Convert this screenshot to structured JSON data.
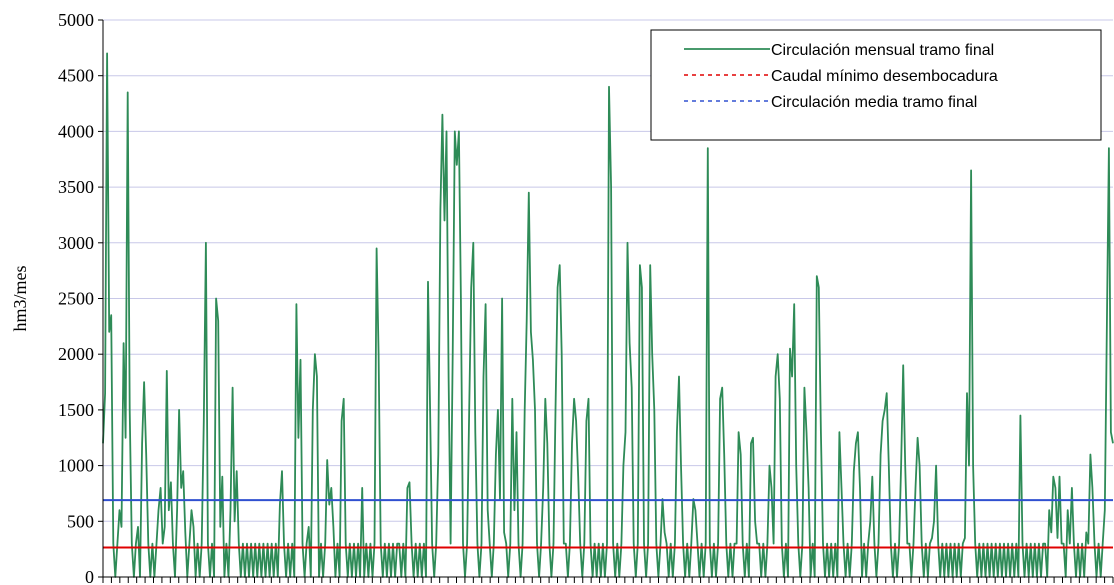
{
  "chart_data": {
    "type": "line",
    "ylabel": "hm3/mes",
    "xlabel": "",
    "ylim": [
      0,
      5000
    ],
    "yticks": [
      0,
      500,
      1000,
      1500,
      2000,
      2500,
      3000,
      3500,
      4000,
      4500,
      5000
    ],
    "grid": true,
    "legend_position": "top-right",
    "colors": {
      "mensual": "#2e8b57",
      "minimo": "#e00000",
      "media": "#3050d0",
      "grid": "#c8c8e8"
    },
    "series": [
      {
        "name": "Circulación mensual tramo final",
        "style": "solid",
        "values": [
          1200,
          1650,
          4700,
          2200,
          2350,
          300,
          0,
          300,
          600,
          450,
          2100,
          1250,
          4350,
          1500,
          300,
          0,
          300,
          450,
          0,
          1200,
          1750,
          1100,
          300,
          0,
          300,
          0,
          300,
          600,
          800,
          300,
          450,
          1850,
          600,
          850,
          300,
          0,
          600,
          1500,
          800,
          950,
          400,
          0,
          300,
          600,
          450,
          0,
          300,
          0,
          300,
          1400,
          3000,
          300,
          0,
          300,
          0,
          2500,
          2300,
          450,
          900,
          0,
          300,
          0,
          600,
          1700,
          500,
          950,
          300,
          0,
          300,
          0,
          300,
          0,
          300,
          0,
          300,
          0,
          300,
          0,
          300,
          0,
          300,
          0,
          300,
          0,
          300,
          0,
          650,
          950,
          300,
          0,
          300,
          0,
          300,
          0,
          2450,
          1250,
          1950,
          300,
          0,
          300,
          450,
          0,
          1500,
          2000,
          1800,
          0,
          300,
          0,
          300,
          1050,
          650,
          800,
          450,
          0,
          300,
          0,
          1400,
          1600,
          300,
          0,
          300,
          0,
          300,
          0,
          300,
          0,
          800,
          0,
          300,
          0,
          300,
          0,
          300,
          2950,
          2000,
          300,
          0,
          300,
          0,
          300,
          0,
          300,
          0,
          300,
          300,
          0,
          300,
          0,
          800,
          850,
          300,
          0,
          300,
          0,
          300,
          0,
          300,
          0,
          2650,
          1500,
          300,
          0,
          300,
          1100,
          3300,
          4150,
          3200,
          4000,
          1800,
          300,
          2000,
          4000,
          3700,
          4000,
          2500,
          300,
          0,
          300,
          1500,
          2600,
          3000,
          1300,
          300,
          0,
          300,
          1800,
          2450,
          600,
          300,
          0,
          300,
          1100,
          1500,
          700,
          2500,
          400,
          300,
          0,
          300,
          1600,
          600,
          1300,
          300,
          0,
          300,
          1500,
          2300,
          3450,
          2200,
          1950,
          1500,
          300,
          0,
          300,
          800,
          1600,
          1200,
          300,
          0,
          300,
          1500,
          2600,
          2800,
          2000,
          300,
          300,
          0,
          300,
          1200,
          1600,
          1400,
          900,
          300,
          0,
          300,
          1400,
          1600,
          300,
          0,
          300,
          0,
          300,
          0,
          300,
          0,
          300,
          4400,
          3500,
          300,
          0,
          300,
          0,
          300,
          1000,
          1300,
          3000,
          2100,
          1700,
          300,
          0,
          300,
          2800,
          2600,
          300,
          0,
          300,
          2800,
          2000,
          1500,
          300,
          0,
          300,
          700,
          400,
          300,
          0,
          300,
          0,
          300,
          1300,
          1800,
          1000,
          300,
          0,
          300,
          0,
          300,
          700,
          600,
          300,
          0,
          300,
          0,
          300,
          3850,
          300,
          0,
          300,
          0,
          300,
          1600,
          1700,
          1100,
          300,
          0,
          300,
          0,
          300,
          300,
          1300,
          1100,
          300,
          0,
          300,
          0,
          1200,
          1250,
          500,
          300,
          300,
          0,
          300,
          0,
          300,
          1000,
          800,
          300,
          1800,
          2000,
          1600,
          300,
          0,
          300,
          0,
          2050,
          1800,
          2450,
          1000,
          300,
          0,
          300,
          1700,
          1300,
          800,
          0,
          300,
          0,
          2700,
          2600,
          1300,
          300,
          0,
          300,
          0,
          300,
          0,
          300,
          0,
          1300,
          800,
          300,
          0,
          300,
          0,
          300,
          950,
          1200,
          1300,
          800,
          0,
          300,
          0,
          300,
          500,
          900,
          300,
          0,
          300,
          1100,
          1400,
          1500,
          1650,
          1000,
          300,
          0,
          300,
          0,
          300,
          1000,
          1900,
          1000,
          300,
          300,
          0,
          300,
          800,
          1250,
          1000,
          300,
          0,
          300,
          0,
          300,
          350,
          500,
          1000,
          300,
          0,
          300,
          0,
          300,
          0,
          300,
          0,
          300,
          0,
          300,
          0,
          300,
          350,
          1650,
          1000,
          3650,
          1000,
          300,
          0,
          300,
          0,
          300,
          0,
          300,
          0,
          300,
          0,
          300,
          0,
          300,
          0,
          300,
          0,
          300,
          0,
          300,
          0,
          300,
          0,
          1450,
          300,
          0,
          300,
          0,
          300,
          0,
          300,
          0,
          300,
          0,
          300,
          300,
          0,
          600,
          400,
          900,
          800,
          350,
          900,
          300,
          300,
          0,
          600,
          300,
          800,
          300,
          0,
          300,
          0,
          300,
          0,
          400,
          300,
          1100,
          800,
          300,
          0,
          300,
          0,
          300,
          600,
          2200,
          3850,
          1300,
          1200
        ]
      },
      {
        "name": "Caudal mínimo desembocadura",
        "style": "dotted",
        "values": [
          265
        ]
      },
      {
        "name": "Circulación media tramo final",
        "style": "dotted",
        "values": [
          690
        ]
      }
    ],
    "baseline_series": {
      "values_minimo": 265,
      "values_media": 690
    }
  }
}
